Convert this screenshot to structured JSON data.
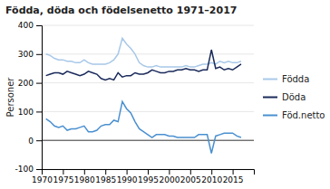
{
  "chart_data": {
    "type": "line",
    "title": "Födda, döda och födelsenetto 1971–2017",
    "y_label": "Personer",
    "x": [
      1971,
      1972,
      1973,
      1974,
      1975,
      1976,
      1977,
      1978,
      1979,
      1980,
      1981,
      1982,
      1983,
      1984,
      1985,
      1986,
      1987,
      1988,
      1989,
      1990,
      1991,
      1992,
      1993,
      1994,
      1995,
      1996,
      1997,
      1998,
      1999,
      2000,
      2001,
      2002,
      2003,
      2004,
      2005,
      2006,
      2007,
      2008,
      2009,
      2010,
      2011,
      2012,
      2013,
      2014,
      2015,
      2016,
      2017
    ],
    "series": [
      {
        "name": "Födda",
        "color": "#a8c8e8",
        "values": [
          300,
          295,
          285,
          280,
          280,
          275,
          275,
          270,
          270,
          280,
          270,
          265,
          265,
          265,
          265,
          270,
          280,
          300,
          355,
          335,
          320,
          300,
          270,
          260,
          255,
          255,
          260,
          255,
          255,
          255,
          255,
          255,
          255,
          260,
          255,
          255,
          260,
          265,
          265,
          270,
          265,
          275,
          270,
          275,
          270,
          270,
          275
        ]
      },
      {
        "name": "Döda",
        "color": "#1a2a5a",
        "values": [
          225,
          230,
          235,
          235,
          230,
          240,
          235,
          230,
          225,
          230,
          240,
          235,
          230,
          215,
          210,
          215,
          210,
          235,
          220,
          225,
          225,
          235,
          230,
          230,
          235,
          245,
          240,
          235,
          235,
          240,
          240,
          245,
          245,
          250,
          245,
          245,
          240,
          245,
          245,
          315,
          250,
          255,
          245,
          250,
          245,
          255,
          265
        ]
      },
      {
        "name": "Föd.netto",
        "color": "#4a90d0",
        "values": [
          75,
          65,
          50,
          45,
          50,
          35,
          40,
          40,
          45,
          50,
          30,
          30,
          35,
          50,
          55,
          55,
          70,
          65,
          135,
          110,
          95,
          65,
          40,
          30,
          20,
          10,
          20,
          20,
          20,
          15,
          15,
          10,
          10,
          10,
          10,
          10,
          20,
          20,
          20,
          -45,
          15,
          20,
          25,
          25,
          25,
          15,
          10
        ]
      }
    ],
    "xlim": [
      1970,
      2020
    ],
    "xticks": [
      1970,
      1975,
      1980,
      1985,
      1990,
      1995,
      2000,
      2005,
      2010,
      2015
    ],
    "ylim": [
      -100,
      400
    ],
    "yticks": [
      -100,
      0,
      100,
      200,
      300,
      400
    ],
    "grid": true,
    "legend": "right"
  }
}
